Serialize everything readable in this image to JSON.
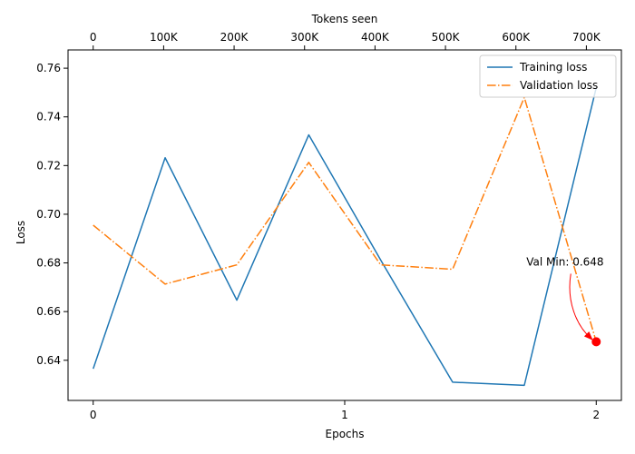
{
  "chart_data": {
    "type": "line",
    "title": "",
    "xlabel": "Epochs",
    "ylabel": "Loss",
    "x2label": "Tokens seen",
    "xlim": [
      -0.1,
      2.1
    ],
    "ylim": [
      0.6235,
      0.7675
    ],
    "grid": false,
    "legend_position": "top-right",
    "x_ticks": [
      {
        "value": 0,
        "label": "0"
      },
      {
        "value": 1,
        "label": "1"
      },
      {
        "value": 2,
        "label": "2"
      }
    ],
    "x2_ticks": [
      {
        "value": 0,
        "label": "0"
      },
      {
        "value": 100000,
        "label": "100K"
      },
      {
        "value": 200000,
        "label": "200K"
      },
      {
        "value": 300000,
        "label": "300K"
      },
      {
        "value": 400000,
        "label": "400K"
      },
      {
        "value": 500000,
        "label": "500K"
      },
      {
        "value": 600000,
        "label": "600K"
      },
      {
        "value": 700000,
        "label": "700K"
      }
    ],
    "x2_per_epoch": 357000,
    "y_ticks": [
      {
        "value": 0.64,
        "label": "0.64"
      },
      {
        "value": 0.66,
        "label": "0.66"
      },
      {
        "value": 0.68,
        "label": "0.68"
      },
      {
        "value": 0.7,
        "label": "0.70"
      },
      {
        "value": 0.72,
        "label": "0.72"
      },
      {
        "value": 0.74,
        "label": "0.74"
      },
      {
        "value": 0.76,
        "label": "0.76"
      }
    ],
    "series": [
      {
        "name": "Training loss",
        "color": "#1f77b4",
        "dash": "solid",
        "x": [
          0,
          0.286,
          0.571,
          0.857,
          1.143,
          1.429,
          1.714,
          2.0
        ],
        "y": [
          0.6365,
          0.7232,
          0.6647,
          0.7326,
          0.6812,
          0.631,
          0.6297,
          0.752
        ]
      },
      {
        "name": "Validation loss",
        "color": "#ff7f0e",
        "dash": "dashdot",
        "x": [
          0,
          0.286,
          0.571,
          0.857,
          1.143,
          1.429,
          1.714,
          2.0
        ],
        "y": [
          0.6955,
          0.6713,
          0.6792,
          0.7213,
          0.6792,
          0.6774,
          0.748,
          0.6476
        ]
      }
    ],
    "annotations": [
      {
        "text": "Val Min: 0.648",
        "x": 2.0,
        "y": 0.6476,
        "color": "#ff0000"
      }
    ]
  }
}
